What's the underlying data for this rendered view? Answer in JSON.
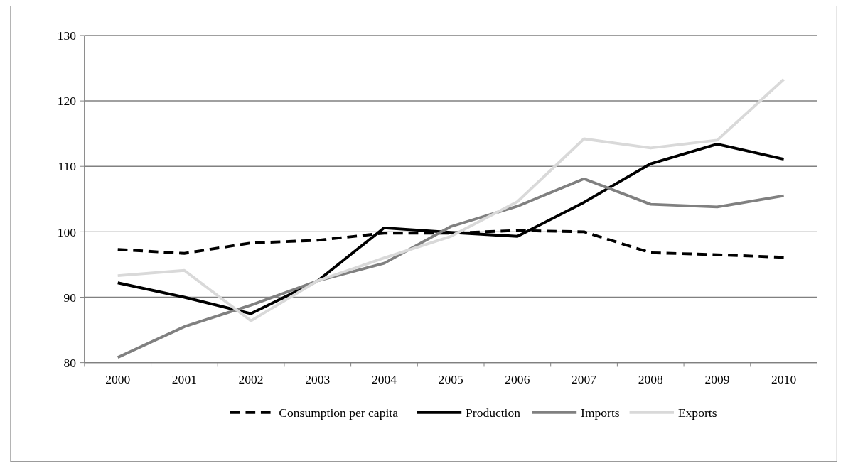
{
  "chart_data": {
    "type": "line",
    "categories": [
      "2000",
      "2001",
      "2002",
      "2003",
      "2004",
      "2005",
      "2006",
      "2007",
      "2008",
      "2009",
      "2010"
    ],
    "series": [
      {
        "name": "Consumption per capita",
        "color": "#000000",
        "line_style": "dashed",
        "values": [
          97.3,
          96.7,
          98.3,
          98.7,
          99.8,
          99.8,
          100.2,
          100,
          96.8,
          96.5,
          96.1
        ]
      },
      {
        "name": "Production",
        "color": "#000000",
        "values": [
          92.2,
          90,
          87.5,
          92.5,
          100.6,
          99.9,
          99.3,
          104.5,
          110.4,
          113.4,
          111.1
        ]
      },
      {
        "name": "Imports",
        "color": "#808080",
        "values": [
          80.8,
          85.5,
          88.8,
          92.5,
          95.2,
          100.8,
          103.9,
          108.1,
          104.2,
          103.8,
          105.5
        ]
      },
      {
        "name": "Exports",
        "color": "#d9d9d9",
        "values": [
          93.3,
          94.1,
          86.4,
          92.5,
          96,
          99.3,
          104.6,
          114.2,
          112.8,
          114,
          123.3
        ]
      }
    ],
    "ylim": [
      80,
      130
    ],
    "yticks": [
      80,
      90,
      100,
      110,
      120,
      130
    ],
    "grid": "y",
    "legend": "bottom",
    "line_style": "solid",
    "marker": "none"
  }
}
